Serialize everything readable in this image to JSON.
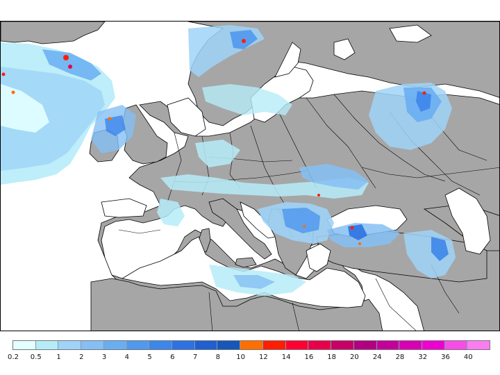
{
  "legend": {
    "ticks": [
      "0.2",
      "0.5",
      "1",
      "2",
      "3",
      "4",
      "5",
      "6",
      "7",
      "8",
      "10",
      "12",
      "14",
      "16",
      "18",
      "20",
      "24",
      "28",
      "32",
      "36",
      "40"
    ],
    "colors": [
      "#e3ffff",
      "#b6ecf8",
      "#9fd3f7",
      "#85bff4",
      "#6aaef2",
      "#5199ee",
      "#3d86ea",
      "#2e72e2",
      "#1f5fd0",
      "#1657b8",
      "#ff6e00",
      "#ff1e00",
      "#ff0033",
      "#e8004a",
      "#c80066",
      "#b20080",
      "#c4009a",
      "#d800b5",
      "#ee00d0",
      "#f54ee6",
      "#fb7df0"
    ]
  },
  "map": {
    "land_color": "#a6a6a6",
    "sea_color": "#ffffff",
    "border_color": "#000000"
  }
}
